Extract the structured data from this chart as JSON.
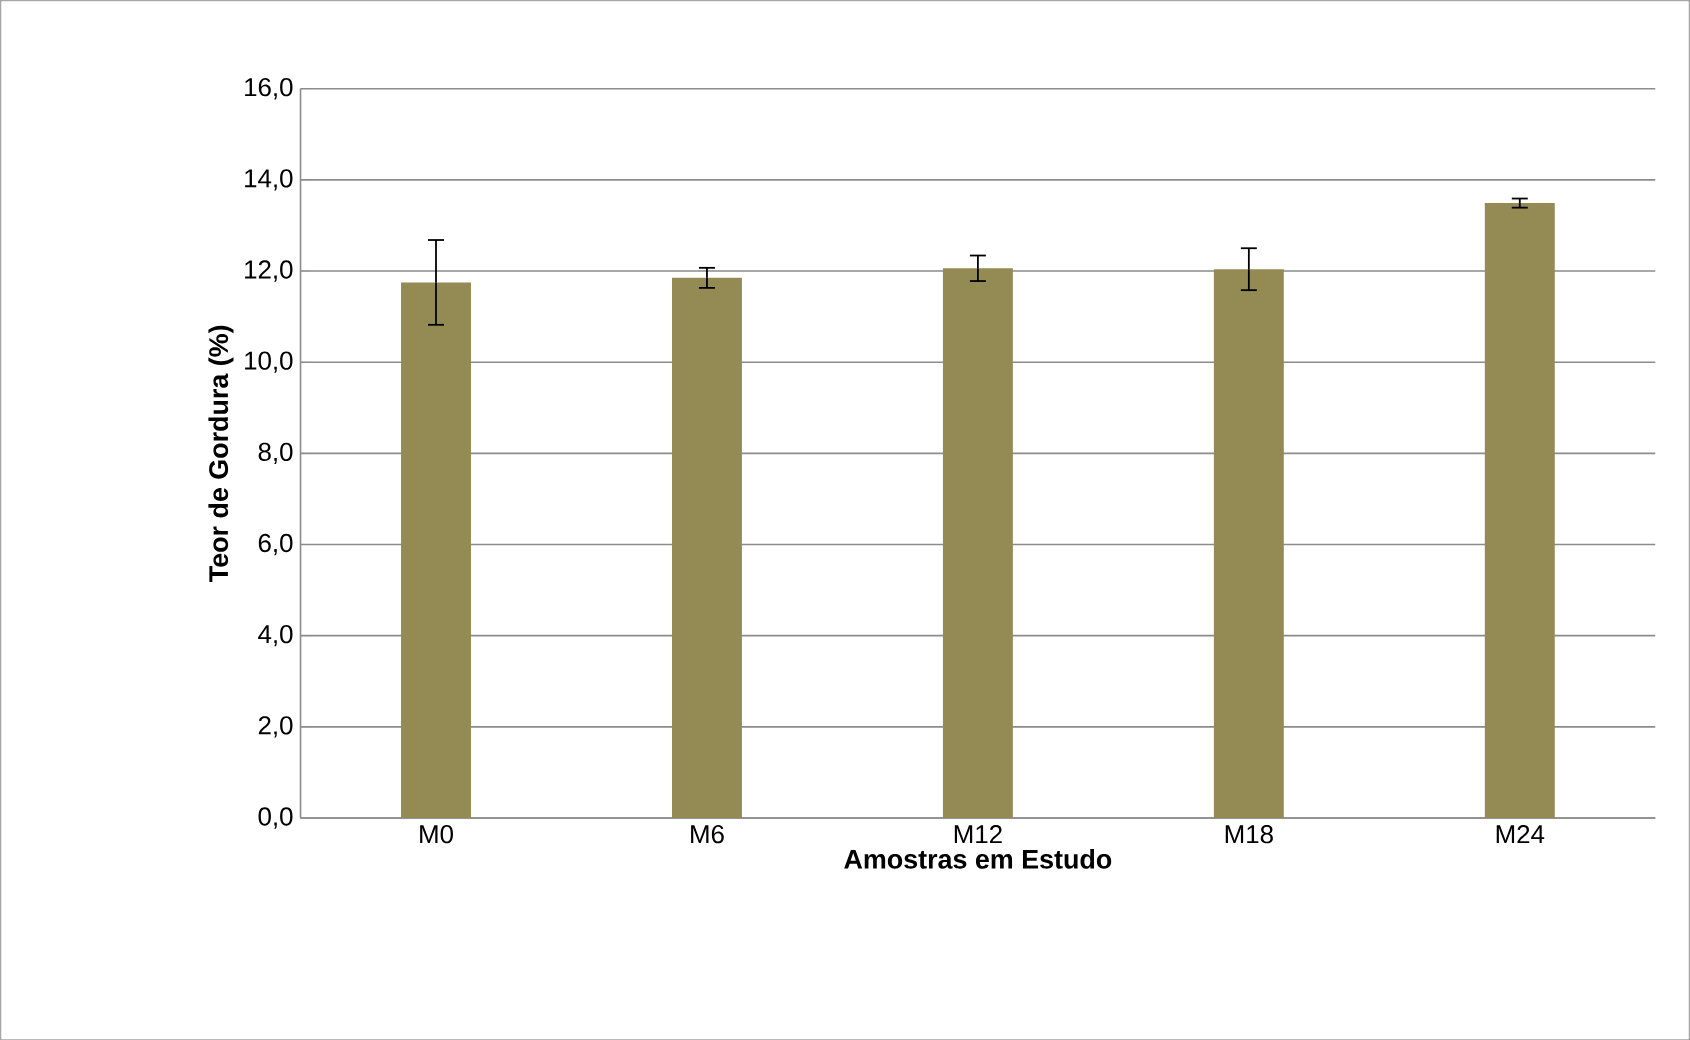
{
  "chart_data": {
    "type": "bar",
    "xlabel": "Amostras em Estudo",
    "ylabel": "Teor de Gordura (%)",
    "categories": [
      "M0",
      "M6",
      "M12",
      "M18",
      "M24"
    ],
    "values": [
      11.75,
      11.85,
      12.06,
      12.04,
      13.49
    ],
    "errors": [
      0.93,
      0.22,
      0.28,
      0.46,
      0.1
    ],
    "color": "#948a54",
    "ylim": [
      0,
      16
    ],
    "yticks": [
      {
        "value": 0,
        "label": "0,0"
      },
      {
        "value": 2,
        "label": "2,0"
      },
      {
        "value": 4,
        "label": "4,0"
      },
      {
        "value": 6,
        "label": "6,0"
      },
      {
        "value": 8,
        "label": "8,0"
      },
      {
        "value": 10,
        "label": "10,0"
      },
      {
        "value": 12,
        "label": "12,0"
      },
      {
        "value": 14,
        "label": "14,0"
      },
      {
        "value": 16,
        "label": "16,0"
      }
    ],
    "grid": "y"
  }
}
